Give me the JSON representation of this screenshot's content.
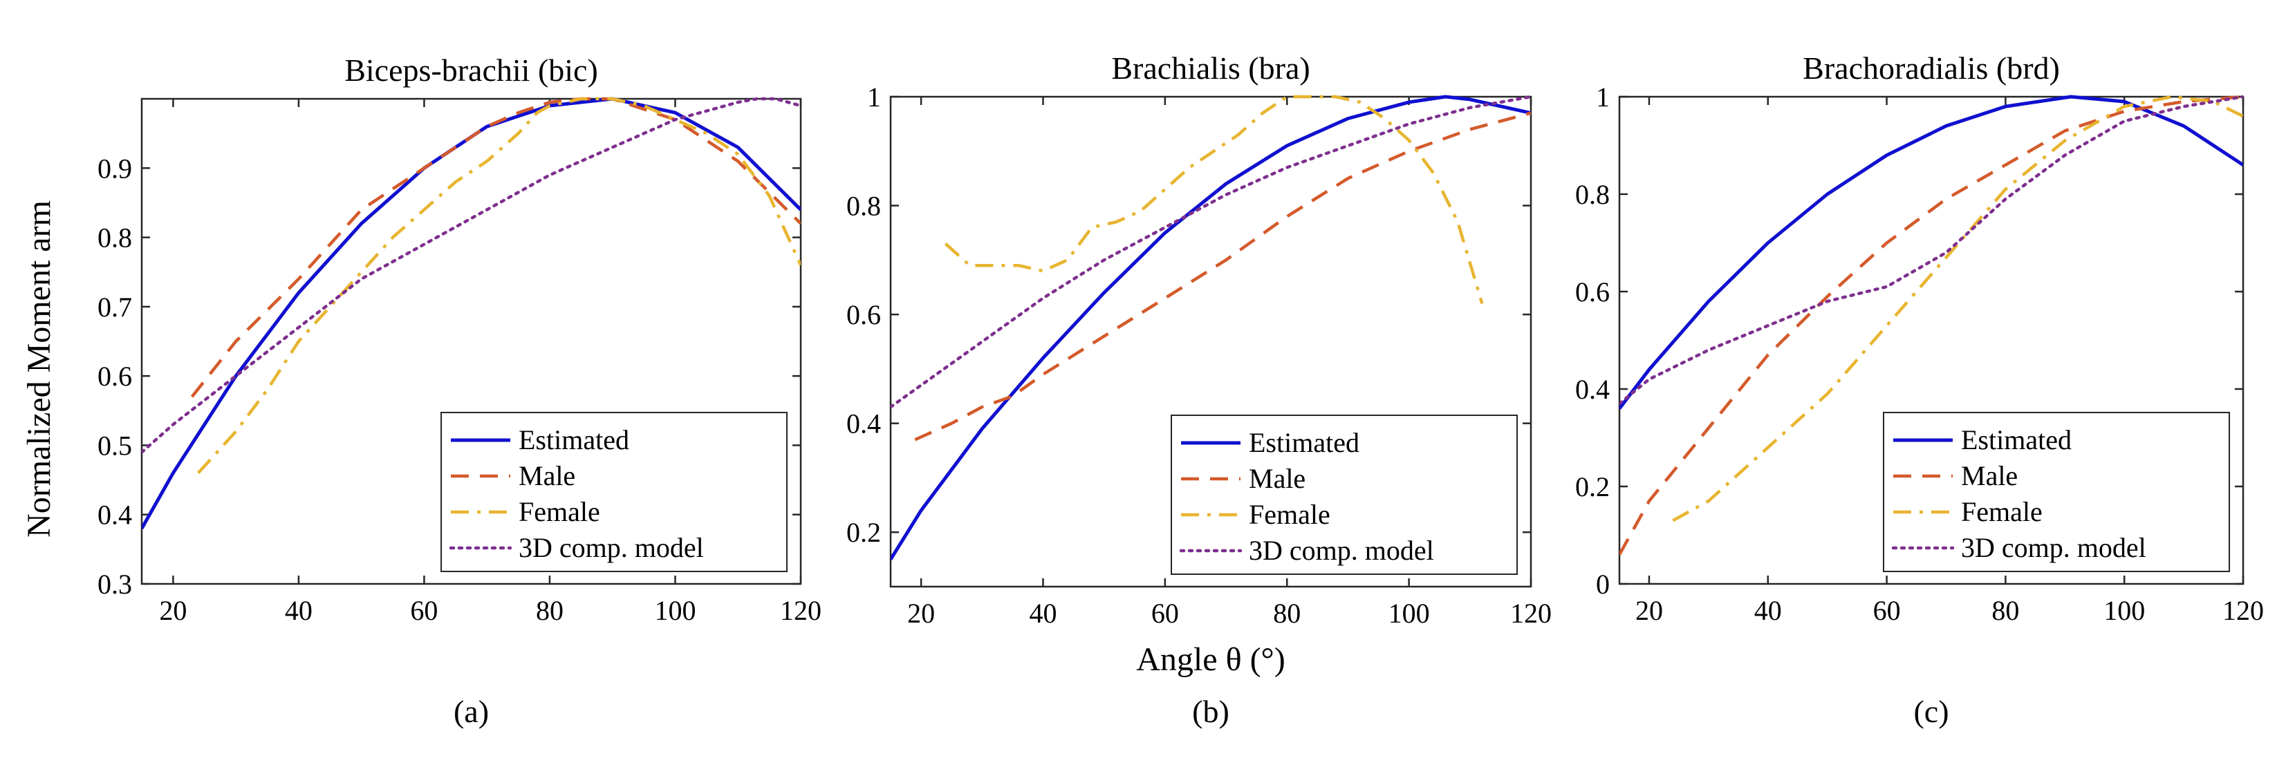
{
  "figure": {
    "ylabel": "Normalized Moment arm",
    "xlabel": "Angle θ (°)",
    "series_styles": [
      {
        "name": "Estimated",
        "color": "#1010d0",
        "dash": "solid"
      },
      {
        "name": "Male",
        "color": "#d45a2a",
        "dash": "dashed"
      },
      {
        "name": "Female",
        "color": "#e8b530",
        "dash": "dashdot"
      },
      {
        "name": "3D comp. model",
        "color": "#7e2f8e",
        "dash": "dotted"
      }
    ]
  },
  "chart_data": [
    {
      "type": "line",
      "title": "Biceps-brachii (bic)",
      "caption": "(a)",
      "xlabel": "",
      "ylabel": "Normalized Moment arm",
      "xlim": [
        15,
        120
      ],
      "ylim": [
        0.3,
        1.0
      ],
      "xticks": [
        "20",
        "40",
        "60",
        "80",
        "100",
        "120"
      ],
      "xtick_values": [
        20,
        40,
        60,
        80,
        100,
        120
      ],
      "yticks": [
        "0.3",
        "0.4",
        "0.5",
        "0.6",
        "0.7",
        "0.8",
        "0.9"
      ],
      "ytick_values": [
        0.3,
        0.4,
        0.5,
        0.6,
        0.7,
        0.8,
        0.9
      ],
      "legend_position": "bottom-right",
      "series": [
        {
          "name": "Estimated",
          "x": [
            15,
            20,
            30,
            40,
            50,
            60,
            70,
            80,
            90,
            100,
            110,
            120
          ],
          "y": [
            0.38,
            0.46,
            0.6,
            0.72,
            0.82,
            0.9,
            0.96,
            0.99,
            1.0,
            0.98,
            0.93,
            0.84
          ]
        },
        {
          "name": "Male",
          "x": [
            23,
            30,
            40,
            45,
            50,
            55,
            60,
            65,
            70,
            75,
            80,
            85,
            90,
            100,
            110,
            120
          ],
          "y": [
            0.57,
            0.65,
            0.74,
            0.79,
            0.84,
            0.87,
            0.9,
            0.93,
            0.96,
            0.98,
            0.995,
            1.0,
            1.0,
            0.97,
            0.91,
            0.82
          ]
        },
        {
          "name": "Female",
          "x": [
            24,
            30,
            35,
            40,
            45,
            50,
            55,
            60,
            65,
            70,
            75,
            78,
            80,
            85,
            90,
            95,
            100,
            105,
            110,
            115,
            120
          ],
          "y": [
            0.46,
            0.52,
            0.58,
            0.65,
            0.7,
            0.75,
            0.8,
            0.84,
            0.88,
            0.91,
            0.95,
            0.98,
            0.99,
            1.0,
            1.0,
            0.99,
            0.97,
            0.95,
            0.92,
            0.86,
            0.76
          ]
        },
        {
          "name": "3D comp. model",
          "x": [
            15,
            20,
            30,
            40,
            50,
            60,
            70,
            80,
            90,
            100,
            110,
            113,
            116,
            120
          ],
          "y": [
            0.49,
            0.53,
            0.6,
            0.67,
            0.74,
            0.79,
            0.84,
            0.89,
            0.93,
            0.97,
            0.995,
            1.0,
            1.0,
            0.99
          ]
        }
      ]
    },
    {
      "type": "line",
      "title": "Brachialis (bra)",
      "caption": "(b)",
      "xlabel": "Angle θ (°)",
      "ylabel": "",
      "xlim": [
        15,
        120
      ],
      "ylim": [
        0.1,
        1.0
      ],
      "xticks": [
        "20",
        "40",
        "60",
        "80",
        "100",
        "120"
      ],
      "xtick_values": [
        20,
        40,
        60,
        80,
        100,
        120
      ],
      "yticks": [
        "0.2",
        "0.4",
        "0.6",
        "0.8",
        "1"
      ],
      "ytick_values": [
        0.2,
        0.4,
        0.6,
        0.8,
        1.0
      ],
      "legend_position": "bottom-right",
      "series": [
        {
          "name": "Estimated",
          "x": [
            15,
            20,
            30,
            40,
            50,
            60,
            70,
            80,
            90,
            100,
            106,
            110,
            120
          ],
          "y": [
            0.15,
            0.24,
            0.39,
            0.52,
            0.64,
            0.75,
            0.84,
            0.91,
            0.96,
            0.99,
            1.0,
            0.995,
            0.97
          ]
        },
        {
          "name": "Male",
          "x": [
            19,
            25,
            30,
            35,
            40,
            50,
            60,
            70,
            80,
            90,
            100,
            110,
            120
          ],
          "y": [
            0.37,
            0.4,
            0.43,
            0.45,
            0.49,
            0.56,
            0.63,
            0.7,
            0.78,
            0.85,
            0.9,
            0.94,
            0.97
          ]
        },
        {
          "name": "Female",
          "x": [
            24,
            28,
            32,
            36,
            40,
            44,
            48,
            52,
            56,
            60,
            64,
            68,
            72,
            76,
            80,
            84,
            88,
            92,
            96,
            100,
            104,
            108,
            112
          ],
          "y": [
            0.73,
            0.69,
            0.69,
            0.69,
            0.68,
            0.7,
            0.76,
            0.77,
            0.79,
            0.83,
            0.87,
            0.9,
            0.93,
            0.97,
            1.0,
            1.0,
            1.0,
            0.99,
            0.96,
            0.92,
            0.86,
            0.77,
            0.62
          ]
        },
        {
          "name": "3D comp. model",
          "x": [
            15,
            20,
            30,
            40,
            50,
            60,
            70,
            80,
            90,
            100,
            110,
            120
          ],
          "y": [
            0.43,
            0.47,
            0.55,
            0.63,
            0.7,
            0.76,
            0.82,
            0.87,
            0.91,
            0.95,
            0.98,
            1.0
          ]
        }
      ]
    },
    {
      "type": "line",
      "title": "Brachoradialis (brd)",
      "caption": "(c)",
      "xlabel": "",
      "ylabel": "",
      "xlim": [
        15,
        120
      ],
      "ylim": [
        0,
        1.0
      ],
      "xticks": [
        "20",
        "40",
        "60",
        "80",
        "100",
        "120"
      ],
      "xtick_values": [
        20,
        40,
        60,
        80,
        100,
        120
      ],
      "yticks": [
        "0",
        "0.2",
        "0.4",
        "0.6",
        "0.8",
        "1"
      ],
      "ytick_values": [
        0,
        0.2,
        0.4,
        0.6,
        0.8,
        1.0
      ],
      "legend_position": "bottom-right",
      "series": [
        {
          "name": "Estimated",
          "x": [
            15,
            20,
            30,
            40,
            50,
            60,
            70,
            80,
            91,
            100,
            110,
            120
          ],
          "y": [
            0.36,
            0.44,
            0.58,
            0.7,
            0.8,
            0.88,
            0.94,
            0.98,
            1.0,
            0.99,
            0.94,
            0.86
          ]
        },
        {
          "name": "Male",
          "x": [
            15,
            20,
            30,
            40,
            50,
            60,
            70,
            80,
            90,
            100,
            110,
            120
          ],
          "y": [
            0.06,
            0.17,
            0.32,
            0.47,
            0.59,
            0.7,
            0.79,
            0.86,
            0.93,
            0.97,
            0.99,
            1.0
          ]
        },
        {
          "name": "Female",
          "x": [
            24,
            30,
            40,
            50,
            60,
            70,
            80,
            90,
            100,
            108,
            115,
            120
          ],
          "y": [
            0.13,
            0.17,
            0.28,
            0.39,
            0.53,
            0.67,
            0.81,
            0.91,
            0.98,
            1.0,
            0.99,
            0.96
          ]
        },
        {
          "name": "3D comp. model",
          "x": [
            15,
            20,
            30,
            40,
            50,
            60,
            70,
            80,
            90,
            100,
            110,
            120
          ],
          "y": [
            0.37,
            0.42,
            0.48,
            0.53,
            0.58,
            0.61,
            0.68,
            0.79,
            0.88,
            0.95,
            0.98,
            1.0
          ]
        }
      ]
    }
  ]
}
